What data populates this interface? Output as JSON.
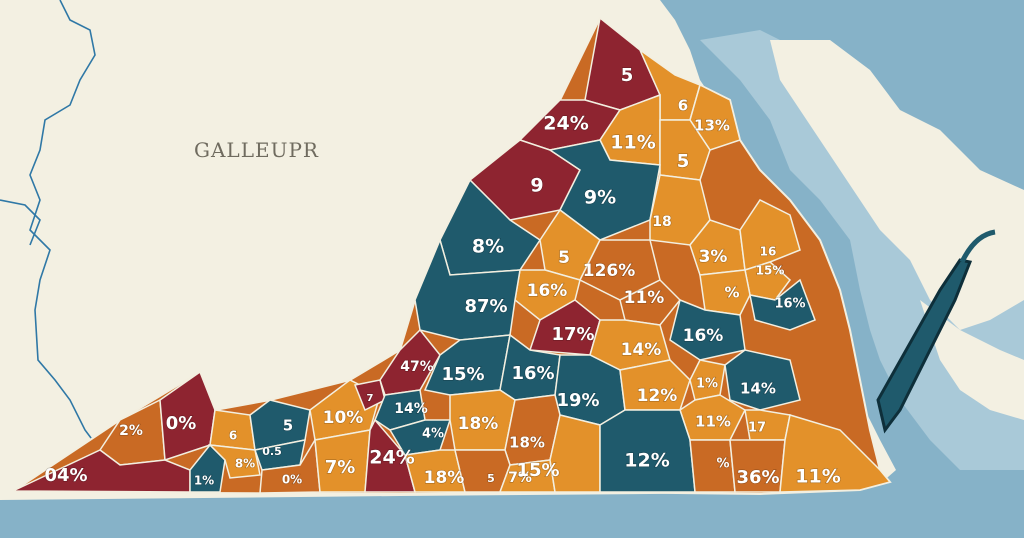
{
  "map": {
    "title": "GALLEUPR",
    "colors": {
      "background": "#f3f0e2",
      "water": "#86b2c8",
      "water_shallow": "#a9c9d8",
      "border": "#2f78a6",
      "county_outline": "#f3efe0",
      "maroon": "#8e2430",
      "orange": "#e3912a",
      "burnt_orange": "#c96a24",
      "teal": "#1f5a6c"
    },
    "regions": [
      {
        "label": "5",
        "color": "maroon"
      },
      {
        "label": "24%",
        "color": "maroon"
      },
      {
        "label": "6",
        "color": "orange"
      },
      {
        "label": "13%",
        "color": "orange"
      },
      {
        "label": "11%",
        "color": "orange"
      },
      {
        "label": "5",
        "color": "orange"
      },
      {
        "label": "9",
        "color": "maroon"
      },
      {
        "label": "9%",
        "color": "teal"
      },
      {
        "label": "18",
        "color": "orange"
      },
      {
        "label": "8%",
        "color": "teal"
      },
      {
        "label": "5",
        "color": "orange"
      },
      {
        "label": "126%",
        "color": "burnt_orange"
      },
      {
        "label": "3%",
        "color": "orange"
      },
      {
        "label": "16",
        "color": "orange"
      },
      {
        "label": "15%",
        "color": "orange"
      },
      {
        "label": "16%",
        "color": "orange"
      },
      {
        "label": "11%",
        "color": "burnt_orange"
      },
      {
        "label": "%",
        "color": "orange"
      },
      {
        "label": "16%",
        "color": "teal"
      },
      {
        "label": "87%",
        "color": "teal"
      },
      {
        "label": "17%",
        "color": "maroon"
      },
      {
        "label": "14%",
        "color": "orange"
      },
      {
        "label": "16%",
        "color": "teal"
      },
      {
        "label": "47%",
        "color": "maroon"
      },
      {
        "label": "15%",
        "color": "teal"
      },
      {
        "label": "16%",
        "color": "teal"
      },
      {
        "label": "19%",
        "color": "teal"
      },
      {
        "label": "12%",
        "color": "orange"
      },
      {
        "label": "1%",
        "color": "orange"
      },
      {
        "label": "14%",
        "color": "teal"
      },
      {
        "label": "2%",
        "color": "burnt_orange"
      },
      {
        "label": "0%",
        "color": "maroon"
      },
      {
        "label": "6",
        "color": "orange"
      },
      {
        "label": "5",
        "color": "teal"
      },
      {
        "label": "10%",
        "color": "orange"
      },
      {
        "label": "7",
        "color": "maroon"
      },
      {
        "label": "14%",
        "color": "teal"
      },
      {
        "label": "4%",
        "color": "teal"
      },
      {
        "label": "18%",
        "color": "orange"
      },
      {
        "label": "18%",
        "color": "burnt_orange"
      },
      {
        "label": "11%",
        "color": "orange"
      },
      {
        "label": "17",
        "color": "orange"
      },
      {
        "label": "04%",
        "color": "maroon"
      },
      {
        "label": "1%",
        "color": "teal"
      },
      {
        "label": "8%",
        "color": "orange"
      },
      {
        "label": "0.5",
        "color": "teal"
      },
      {
        "label": "0%",
        "color": "burnt_orange"
      },
      {
        "label": "7%",
        "color": "orange"
      },
      {
        "label": "24%",
        "color": "maroon"
      },
      {
        "label": "18%",
        "color": "orange"
      },
      {
        "label": "5",
        "color": "orange"
      },
      {
        "label": "7%",
        "color": "orange"
      },
      {
        "label": "15%",
        "color": "orange"
      },
      {
        "label": "12%",
        "color": "teal"
      },
      {
        "label": "%",
        "color": "burnt_orange"
      },
      {
        "label": "36%",
        "color": "burnt_orange"
      },
      {
        "label": "11%",
        "color": "orange"
      }
    ]
  }
}
